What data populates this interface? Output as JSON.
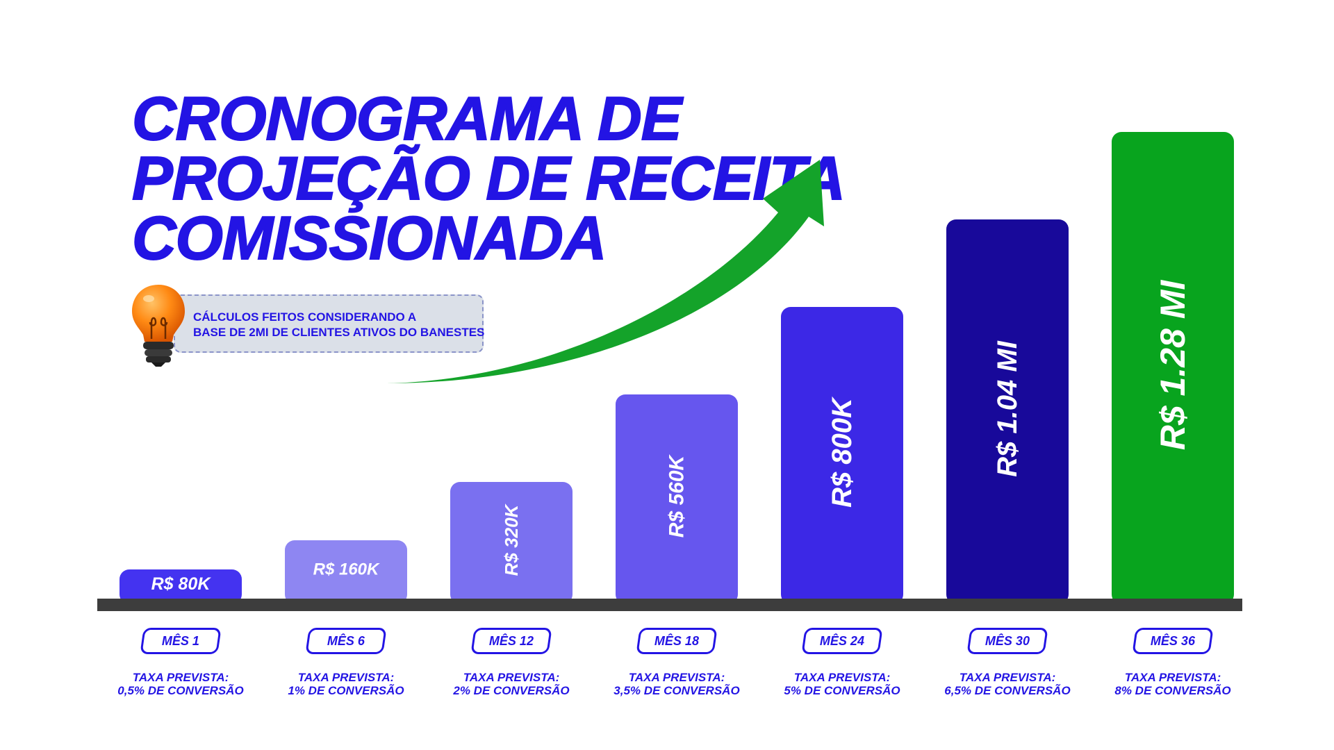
{
  "title_lines": [
    "CRONOGRAMA DE",
    "PROJEÇÃO DE RECEITA",
    "COMISSIONADA"
  ],
  "note_lines": [
    "CÁLCULOS  FEITOS CONSIDERANDO A",
    "BASE DE 2MI DE CLIENTES ATIVOS DO BANESTES"
  ],
  "icons": {
    "bulb": "light-bulb-icon",
    "arrow": "trend-up-arrow-icon"
  },
  "colors": {
    "title": "#2314e4",
    "arrow": "#14a32a",
    "axis": "#3d3d3d",
    "bars": [
      "#4433f0",
      "#8e86f2",
      "#7a70f0",
      "#6656ee",
      "#3c28e6",
      "#18099a",
      "#08a41e"
    ]
  },
  "chart_data": {
    "type": "bar",
    "title": "CRONOGRAMA DE PROJEÇÃO DE RECEITA COMISSIONADA",
    "categories": [
      "MÊS 1",
      "MÊS 6",
      "MÊS 12",
      "MÊS 18",
      "MÊS 24",
      "MÊS 30",
      "MÊS 36"
    ],
    "values": [
      80000,
      160000,
      320000,
      560000,
      800000,
      1040000,
      1280000
    ],
    "data_labels": [
      "R$ 80K",
      "R$ 160K",
      "R$ 320K",
      "R$ 560K",
      "R$ 800K",
      "R$ 1.04 MI",
      "R$ 1.28 MI"
    ],
    "rate_lines": [
      [
        "TAXA PREVISTA:",
        "0,5% DE CONVERSÃO"
      ],
      [
        "TAXA PREVISTA:",
        "1% DE CONVERSÃO"
      ],
      [
        "TAXA PREVISTA:",
        "2% DE CONVERSÃO"
      ],
      [
        "TAXA PREVISTA:",
        "3,5% DE CONVERSÃO"
      ],
      [
        "TAXA PREVISTA:",
        "5% DE CONVERSÃO"
      ],
      [
        "TAXA PREVISTA:",
        "6,5% DE CONVERSÃO"
      ],
      [
        "TAXA PREVISTA:",
        "8% DE CONVERSÃO"
      ]
    ],
    "xlabel": "",
    "ylabel": "",
    "ylim": [
      0,
      1280000
    ],
    "grid": false,
    "legend": "none"
  }
}
